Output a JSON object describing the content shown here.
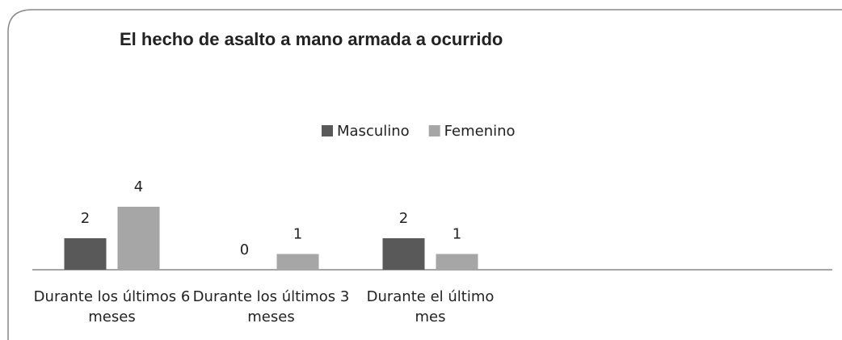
{
  "chart_data": {
    "type": "bar",
    "title": "El hecho de asalto a mano armada a ocurrido",
    "categories": [
      "Durante los últimos 6 meses",
      "Durante los últimos 3 meses",
      "Durante el último mes",
      null,
      null
    ],
    "series": [
      {
        "name": "Masculino",
        "color": "#595959",
        "values": [
          2,
          0,
          2,
          null,
          null
        ]
      },
      {
        "name": "Femenino",
        "color": "#a6a6a6",
        "values": [
          4,
          1,
          1,
          null,
          null
        ]
      }
    ],
    "legend": "top"
  }
}
